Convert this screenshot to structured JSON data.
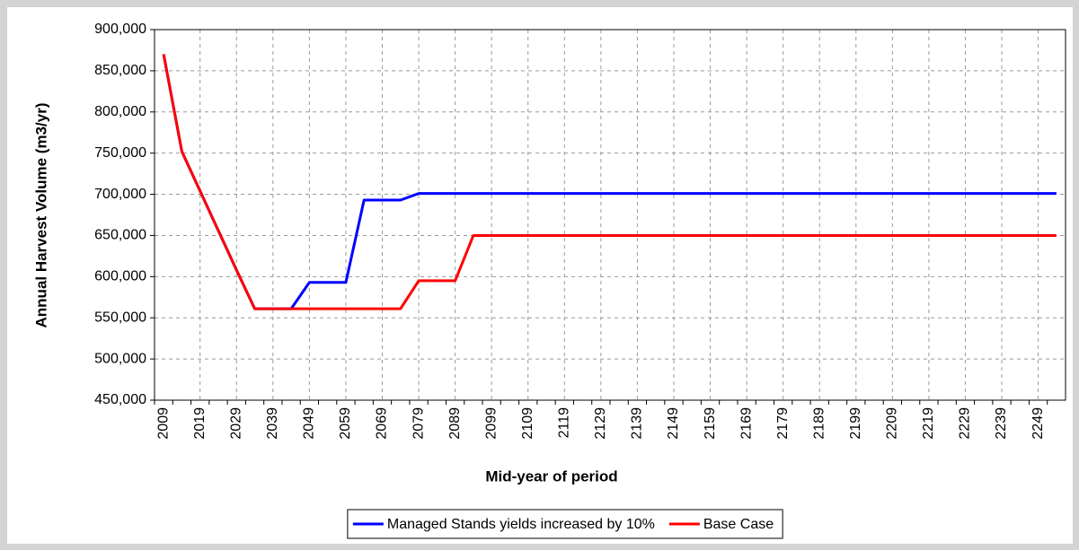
{
  "chart_data": {
    "type": "line",
    "x_label": "Mid-year of period",
    "y_label": "Annual Harvest Volume (m3/yr)",
    "categories": [
      "2009",
      null,
      "2019",
      null,
      "2029",
      null,
      "2039",
      null,
      "2049",
      null,
      "2059",
      null,
      "2069",
      null,
      "2079",
      null,
      "2089",
      null,
      "2099",
      null,
      "2109",
      null,
      "2119",
      null,
      "2129",
      null,
      "2139",
      null,
      "2149",
      null,
      "2159",
      null,
      "2169",
      null,
      "2179",
      null,
      "2189",
      null,
      "2199",
      null,
      "2209",
      null,
      "2219",
      null,
      "2229",
      null,
      "2239",
      null,
      "2249",
      null
    ],
    "series": [
      {
        "name": "Managed Stands yields increased by 10%",
        "color": "#0000ff",
        "values": [
          870000,
          752000,
          704000,
          656000,
          608000,
          561000,
          561000,
          561000,
          593000,
          593000,
          593000,
          693000,
          693000,
          693000,
          701000,
          701000,
          701000,
          701000,
          701000,
          701000,
          701000,
          701000,
          701000,
          701000,
          701000,
          701000,
          701000,
          701000,
          701000,
          701000,
          701000,
          701000,
          701000,
          701000,
          701000,
          701000,
          701000,
          701000,
          701000,
          701000,
          701000,
          701000,
          701000,
          701000,
          701000,
          701000,
          701000,
          701000,
          701000,
          701000
        ]
      },
      {
        "name": "Base Case",
        "color": "#ff0000",
        "values": [
          870000,
          752000,
          704000,
          656000,
          608000,
          561000,
          561000,
          561000,
          561000,
          561000,
          561000,
          561000,
          561000,
          561000,
          595000,
          595000,
          595000,
          650000,
          650000,
          650000,
          650000,
          650000,
          650000,
          650000,
          650000,
          650000,
          650000,
          650000,
          650000,
          650000,
          650000,
          650000,
          650000,
          650000,
          650000,
          650000,
          650000,
          650000,
          650000,
          650000,
          650000,
          650000,
          650000,
          650000,
          650000,
          650000,
          650000,
          650000,
          650000,
          650000
        ]
      }
    ],
    "ylim": [
      450000,
      900000
    ],
    "yticks": [
      {
        "value": 450000,
        "label": "450,000"
      },
      {
        "value": 500000,
        "label": "500,000"
      },
      {
        "value": 550000,
        "label": "550,000"
      },
      {
        "value": 600000,
        "label": "600,000"
      },
      {
        "value": 650000,
        "label": "650,000"
      },
      {
        "value": 700000,
        "label": "700,000"
      },
      {
        "value": 750000,
        "label": "750,000"
      },
      {
        "value": 800000,
        "label": "800,000"
      },
      {
        "value": 850000,
        "label": "850,000"
      },
      {
        "value": 900000,
        "label": "900,000"
      }
    ],
    "grid": true,
    "legend": "bottom"
  }
}
